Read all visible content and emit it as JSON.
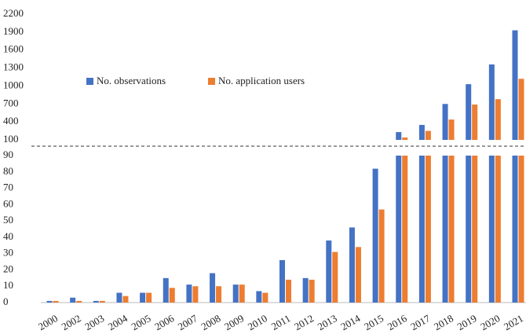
{
  "chart_data": {
    "type": "bar",
    "categories": [
      "2000",
      "2002",
      "2003",
      "2004",
      "2005",
      "2006",
      "2007",
      "2008",
      "2009",
      "2010",
      "2011",
      "2012",
      "2013",
      "2014",
      "2015",
      "2016",
      "2017",
      "2018",
      "2019",
      "2020",
      "2021"
    ],
    "series": [
      {
        "name": "No. observations",
        "color": "#4472c4",
        "values": [
          1,
          3,
          1,
          6,
          6,
          15,
          11,
          18,
          11,
          7,
          26,
          15,
          38,
          46,
          82,
          230,
          350,
          700,
          1030,
          1360,
          1930
        ]
      },
      {
        "name": "No. application users",
        "color": "#ed7d31",
        "values": [
          1,
          1,
          1,
          4,
          6,
          9,
          10,
          10,
          11,
          6,
          14,
          14,
          31,
          34,
          57,
          140,
          250,
          440,
          690,
          780,
          1120
        ]
      }
    ],
    "axis_break": {
      "lower": {
        "ylim": [
          0,
          90
        ],
        "yticks": [
          0,
          10,
          20,
          30,
          40,
          50,
          60,
          70,
          80,
          90
        ]
      },
      "upper": {
        "ylim": [
          100,
          2200
        ],
        "yticks": [
          100,
          400,
          700,
          1000,
          1300,
          1600,
          1900,
          2200
        ]
      }
    },
    "legend": "upper-left"
  }
}
